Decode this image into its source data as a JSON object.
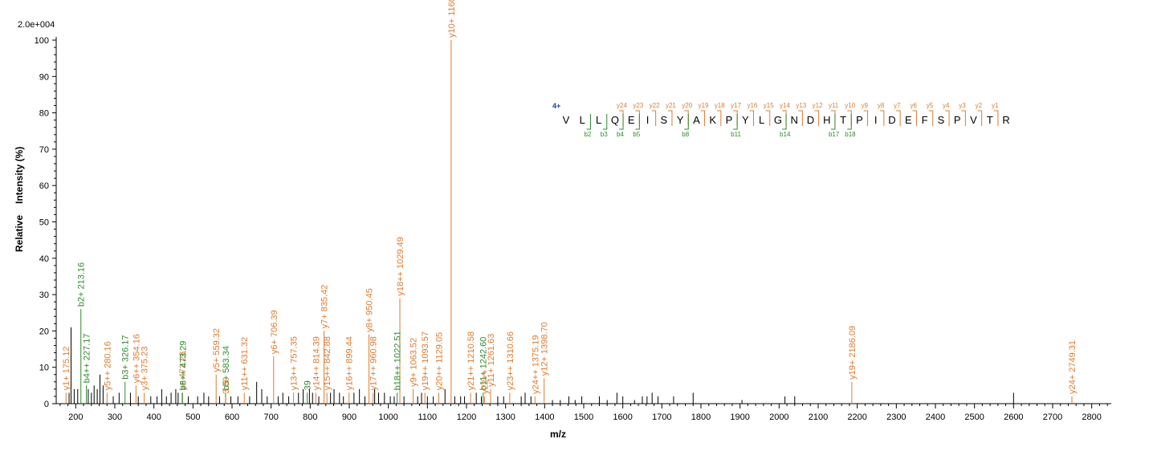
{
  "chart_data": {
    "type": "bar",
    "scale_label": "2.0e+004",
    "xlabel": "m/z",
    "ylabel_parts": [
      "Relative",
      "Intensity (%)"
    ],
    "xlim": [
      150,
      2850
    ],
    "ylim": [
      0,
      100
    ],
    "x_ticks": [
      200,
      300,
      400,
      500,
      600,
      700,
      800,
      900,
      1000,
      1100,
      1200,
      1300,
      1400,
      1500,
      1600,
      1700,
      1800,
      1900,
      2000,
      2100,
      2200,
      2300,
      2400,
      2500,
      2600,
      2700,
      2800
    ],
    "y_ticks": [
      0,
      10,
      20,
      30,
      40,
      50,
      60,
      70,
      80,
      90,
      100
    ],
    "colors": {
      "y_ion": "#e07b2e",
      "b_ion": "#2e8b2e",
      "unassigned": "#000000",
      "charge": "#1f3fa8"
    },
    "annotated_peaks": [
      {
        "mz": 175.12,
        "intensity": 3,
        "label": "y1+ 175.12",
        "ion": "y"
      },
      {
        "mz": 213.16,
        "intensity": 26,
        "label": "b2+ 213.16",
        "ion": "b"
      },
      {
        "mz": 227.17,
        "intensity": 5,
        "label": "b4++ 227.17",
        "ion": "b"
      },
      {
        "mz": 280.16,
        "intensity": 3,
        "label": "y5++ 280.16",
        "ion": "y"
      },
      {
        "mz": 326.17,
        "intensity": 6,
        "label": "b3+ 326.17",
        "ion": "b"
      },
      {
        "mz": 354.16,
        "intensity": 5,
        "label": "y6++ 354.16",
        "ion": "y"
      },
      {
        "mz": 375.23,
        "intensity": 3,
        "label": "y3+ 375.23",
        "ion": "y"
      },
      {
        "mz": 472.28,
        "intensity": 3,
        "label": "y+ 472.28",
        "ion": "y"
      },
      {
        "mz": 473.29,
        "intensity": 3,
        "label": "b8++ 473.29",
        "ion": "b"
      },
      {
        "mz": 559.32,
        "intensity": 8,
        "label": "y5+ 559.32",
        "ion": "y"
      },
      {
        "mz": 583.34,
        "intensity": 3,
        "label": "b5+ 583.34",
        "ion": "b"
      },
      {
        "mz": 583.8,
        "intensity": 2,
        "label": "3.80",
        "ion": "y"
      },
      {
        "mz": 631.32,
        "intensity": 3,
        "label": "y11++ 631.32",
        "ion": "y"
      },
      {
        "mz": 706.39,
        "intensity": 13,
        "label": "y6+ 706.39",
        "ion": "y"
      },
      {
        "mz": 757.35,
        "intensity": 3,
        "label": "y13++ 757.35",
        "ion": "y"
      },
      {
        "mz": 792.39,
        "intensity": 3,
        "label": "39",
        "ion": "b"
      },
      {
        "mz": 814.39,
        "intensity": 3,
        "label": "y14++ 814.39",
        "ion": "y"
      },
      {
        "mz": 835.42,
        "intensity": 20,
        "label": "y7+ 835.42",
        "ion": "y"
      },
      {
        "mz": 842.88,
        "intensity": 3,
        "label": "y15++ 842.88",
        "ion": "y"
      },
      {
        "mz": 899.44,
        "intensity": 3,
        "label": "y16++ 899.44",
        "ion": "y"
      },
      {
        "mz": 950.45,
        "intensity": 19,
        "label": "y8+ 950.45",
        "ion": "y"
      },
      {
        "mz": 960.98,
        "intensity": 3,
        "label": "y17++ 960.98",
        "ion": "y"
      },
      {
        "mz": 1022.51,
        "intensity": 3,
        "label": "b18++ 1022.51",
        "ion": "b"
      },
      {
        "mz": 1029.49,
        "intensity": 29,
        "label": "y18++ 1029.49",
        "ion": "y"
      },
      {
        "mz": 1063.52,
        "intensity": 4,
        "label": "y9+ 1063.52",
        "ion": "y"
      },
      {
        "mz": 1093.57,
        "intensity": 3,
        "label": "y19++ 1093.57",
        "ion": "y"
      },
      {
        "mz": 1129.05,
        "intensity": 3,
        "label": "y20++ 1129.05",
        "ion": "y"
      },
      {
        "mz": 1160.59,
        "intensity": 100,
        "label": "y10+ 1160.59",
        "ion": "y"
      },
      {
        "mz": 1210.58,
        "intensity": 3,
        "label": "y21++ 1210.58",
        "ion": "y"
      },
      {
        "mz": 1242.6,
        "intensity": 3,
        "label": "b11+ 1242.60",
        "ion": "b"
      },
      {
        "mz": 1246.0,
        "intensity": 2,
        "label": "y22++",
        "ion": "y"
      },
      {
        "mz": 1261.63,
        "intensity": 4,
        "label": "y11+ 1261.63",
        "ion": "y"
      },
      {
        "mz": 1310.66,
        "intensity": 3,
        "label": "y23++ 1310.66",
        "ion": "y"
      },
      {
        "mz": 1375.19,
        "intensity": 2,
        "label": "y24++ 1375.19",
        "ion": "y"
      },
      {
        "mz": 1398.7,
        "intensity": 7,
        "label": "y12+ 1398.70",
        "ion": "y"
      },
      {
        "mz": 2186.09,
        "intensity": 6,
        "label": "y19+ 2186.09",
        "ion": "y"
      },
      {
        "mz": 2749.31,
        "intensity": 2,
        "label": "y24+ 2749.31",
        "ion": "y"
      }
    ],
    "unannotated_peaks": [
      {
        "mz": 188,
        "intensity": 21
      },
      {
        "mz": 183,
        "intensity": 3
      },
      {
        "mz": 196,
        "intensity": 4
      },
      {
        "mz": 205,
        "intensity": 4
      },
      {
        "mz": 232,
        "intensity": 4
      },
      {
        "mz": 240,
        "intensity": 3
      },
      {
        "mz": 247,
        "intensity": 5
      },
      {
        "mz": 255,
        "intensity": 4
      },
      {
        "mz": 262,
        "intensity": 8
      },
      {
        "mz": 270,
        "intensity": 5
      },
      {
        "mz": 296,
        "intensity": 2
      },
      {
        "mz": 311,
        "intensity": 3
      },
      {
        "mz": 340,
        "intensity": 3
      },
      {
        "mz": 360,
        "intensity": 2
      },
      {
        "mz": 392,
        "intensity": 2
      },
      {
        "mz": 408,
        "intensity": 2
      },
      {
        "mz": 420,
        "intensity": 4
      },
      {
        "mz": 432,
        "intensity": 2
      },
      {
        "mz": 444,
        "intensity": 3
      },
      {
        "mz": 456,
        "intensity": 4
      },
      {
        "mz": 462,
        "intensity": 3
      },
      {
        "mz": 488,
        "intensity": 2
      },
      {
        "mz": 512,
        "intensity": 2
      },
      {
        "mz": 528,
        "intensity": 3
      },
      {
        "mz": 540,
        "intensity": 2
      },
      {
        "mz": 568,
        "intensity": 2
      },
      {
        "mz": 597,
        "intensity": 2
      },
      {
        "mz": 615,
        "intensity": 2
      },
      {
        "mz": 645,
        "intensity": 2
      },
      {
        "mz": 663,
        "intensity": 6
      },
      {
        "mz": 676,
        "intensity": 4
      },
      {
        "mz": 690,
        "intensity": 2
      },
      {
        "mz": 718,
        "intensity": 2
      },
      {
        "mz": 730,
        "intensity": 3
      },
      {
        "mz": 745,
        "intensity": 2
      },
      {
        "mz": 770,
        "intensity": 3
      },
      {
        "mz": 782,
        "intensity": 4
      },
      {
        "mz": 798,
        "intensity": 4
      },
      {
        "mz": 806,
        "intensity": 3
      },
      {
        "mz": 822,
        "intensity": 2
      },
      {
        "mz": 852,
        "intensity": 3
      },
      {
        "mz": 861,
        "intensity": 4
      },
      {
        "mz": 875,
        "intensity": 3
      },
      {
        "mz": 885,
        "intensity": 2
      },
      {
        "mz": 912,
        "intensity": 3
      },
      {
        "mz": 926,
        "intensity": 4
      },
      {
        "mz": 940,
        "intensity": 2
      },
      {
        "mz": 965,
        "intensity": 4
      },
      {
        "mz": 975,
        "intensity": 3
      },
      {
        "mz": 990,
        "intensity": 3
      },
      {
        "mz": 1005,
        "intensity": 2
      },
      {
        "mz": 1015,
        "intensity": 2
      },
      {
        "mz": 1040,
        "intensity": 2
      },
      {
        "mz": 1075,
        "intensity": 2
      },
      {
        "mz": 1085,
        "intensity": 3
      },
      {
        "mz": 1100,
        "intensity": 2
      },
      {
        "mz": 1115,
        "intensity": 2
      },
      {
        "mz": 1145,
        "intensity": 4
      },
      {
        "mz": 1170,
        "intensity": 2
      },
      {
        "mz": 1185,
        "intensity": 2
      },
      {
        "mz": 1195,
        "intensity": 2
      },
      {
        "mz": 1225,
        "intensity": 3
      },
      {
        "mz": 1238,
        "intensity": 2
      },
      {
        "mz": 1280,
        "intensity": 2
      },
      {
        "mz": 1295,
        "intensity": 2
      },
      {
        "mz": 1340,
        "intensity": 2
      },
      {
        "mz": 1350,
        "intensity": 3
      },
      {
        "mz": 1365,
        "intensity": 2
      },
      {
        "mz": 1420,
        "intensity": 1
      },
      {
        "mz": 1440,
        "intensity": 1
      },
      {
        "mz": 1462,
        "intensity": 2
      },
      {
        "mz": 1478,
        "intensity": 1
      },
      {
        "mz": 1495,
        "intensity": 2
      },
      {
        "mz": 1540,
        "intensity": 2
      },
      {
        "mz": 1560,
        "intensity": 1
      },
      {
        "mz": 1585,
        "intensity": 3
      },
      {
        "mz": 1600,
        "intensity": 2
      },
      {
        "mz": 1630,
        "intensity": 1
      },
      {
        "mz": 1650,
        "intensity": 2
      },
      {
        "mz": 1662,
        "intensity": 2
      },
      {
        "mz": 1675,
        "intensity": 3
      },
      {
        "mz": 1690,
        "intensity": 2
      },
      {
        "mz": 1730,
        "intensity": 2
      },
      {
        "mz": 1780,
        "intensity": 3
      },
      {
        "mz": 1905,
        "intensity": 1
      },
      {
        "mz": 2015,
        "intensity": 2
      },
      {
        "mz": 2040,
        "intensity": 2
      },
      {
        "mz": 2600,
        "intensity": 3
      }
    ]
  },
  "sequence": {
    "charge": "4+",
    "residues": [
      "V",
      "L",
      "L",
      "Q",
      "E",
      "I",
      "S",
      "Y",
      "A",
      "K",
      "P",
      "Y",
      "L",
      "G",
      "N",
      "D",
      "H",
      "T",
      "P",
      "I",
      "D",
      "E",
      "F",
      "S",
      "P",
      "V",
      "T",
      "R"
    ],
    "y_labels": [
      "y24",
      "y23",
      "y22",
      "y21",
      "y20",
      "y19",
      "y18",
      "y17",
      "y16",
      "y15",
      "y14",
      "y13",
      "y12",
      "y11",
      "y10",
      "y9",
      "y8",
      "y7",
      "y6",
      "y5",
      "y4",
      "y3",
      "y2",
      "y1"
    ],
    "b_labels": [
      "b2",
      "b3",
      "b4",
      "b5",
      "b8",
      "b11",
      "b14",
      "b17",
      "b18"
    ]
  }
}
